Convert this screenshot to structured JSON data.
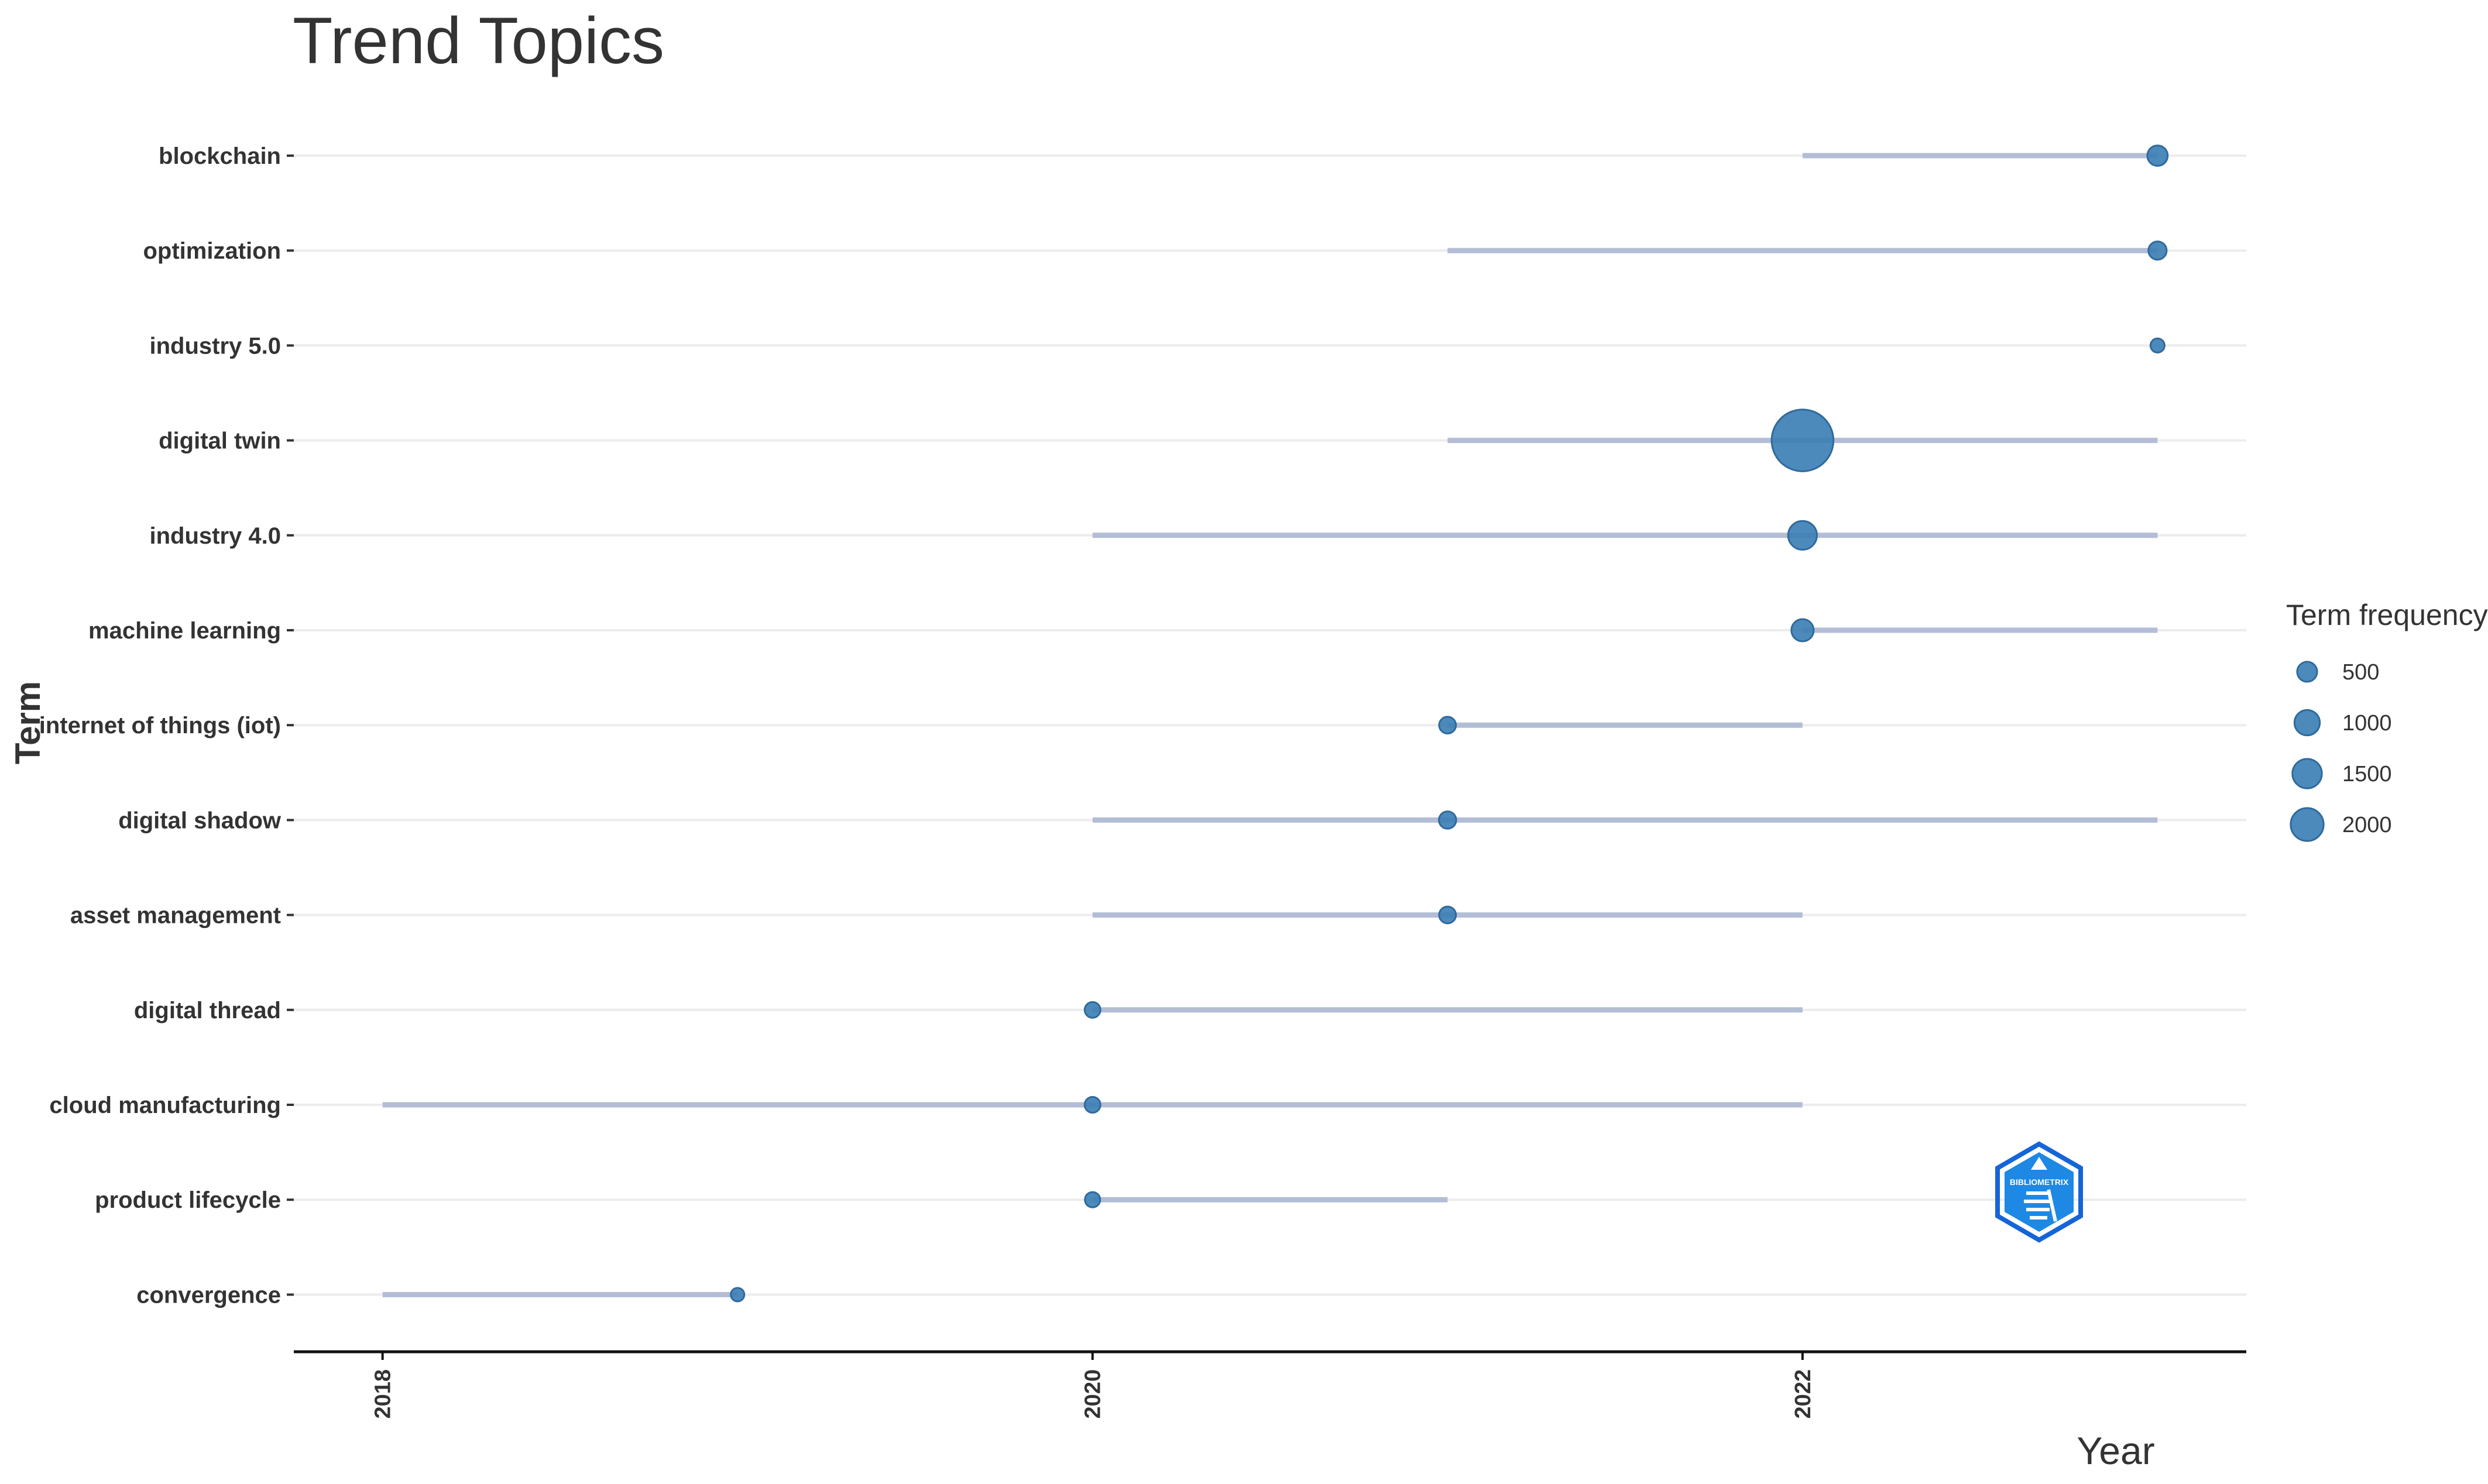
{
  "chart_data": {
    "type": "scatter",
    "title": "Trend Topics",
    "xlabel": "Year",
    "ylabel": "Term",
    "xlim": [
      2017.75,
      2023.25
    ],
    "x_ticks": [
      "2018",
      "2020",
      "2022"
    ],
    "grid": "horizontal",
    "legend": {
      "title": "Term frequency",
      "placement": "right",
      "values": [
        "500",
        "1000",
        "1500",
        "2000"
      ]
    },
    "terms": [
      {
        "term": "blockchain",
        "year_start": 2022,
        "year_median": 2023,
        "year_end": 2023,
        "freq": 250
      },
      {
        "term": "optimization",
        "year_start": 2021,
        "year_median": 2023,
        "year_end": 2023,
        "freq": 200
      },
      {
        "term": "industry 5.0",
        "year_start": 2023,
        "year_median": 2023,
        "year_end": 2023,
        "freq": 120
      },
      {
        "term": "digital twin",
        "year_start": 2021,
        "year_median": 2022,
        "year_end": 2023,
        "freq": 2300
      },
      {
        "term": "industry 4.0",
        "year_start": 2020,
        "year_median": 2022,
        "year_end": 2023,
        "freq": 500
      },
      {
        "term": "machine learning",
        "year_start": 2022,
        "year_median": 2022,
        "year_end": 2023,
        "freq": 300
      },
      {
        "term": "internet of things (iot)",
        "year_start": 2021,
        "year_median": 2021,
        "year_end": 2022,
        "freq": 170
      },
      {
        "term": "digital shadow",
        "year_start": 2020,
        "year_median": 2021,
        "year_end": 2023,
        "freq": 180
      },
      {
        "term": "asset management",
        "year_start": 2020,
        "year_median": 2021,
        "year_end": 2022,
        "freq": 170
      },
      {
        "term": "digital thread",
        "year_start": 2020,
        "year_median": 2020,
        "year_end": 2022,
        "freq": 150
      },
      {
        "term": "cloud manufacturing",
        "year_start": 2018,
        "year_median": 2020,
        "year_end": 2022,
        "freq": 150
      },
      {
        "term": "product lifecycle",
        "year_start": 2020,
        "year_median": 2020,
        "year_end": 2021,
        "freq": 140
      },
      {
        "term": "convergence",
        "year_start": 2018,
        "year_median": 2019,
        "year_end": 2019,
        "freq": 110
      }
    ]
  },
  "colors": {
    "point": "#3a7db5",
    "segment": "#b3bdd6",
    "grid": "#ececec",
    "text": "#333333",
    "logo": "#1565d8"
  },
  "logo": {
    "text": "BIBLIOMETRIX"
  }
}
